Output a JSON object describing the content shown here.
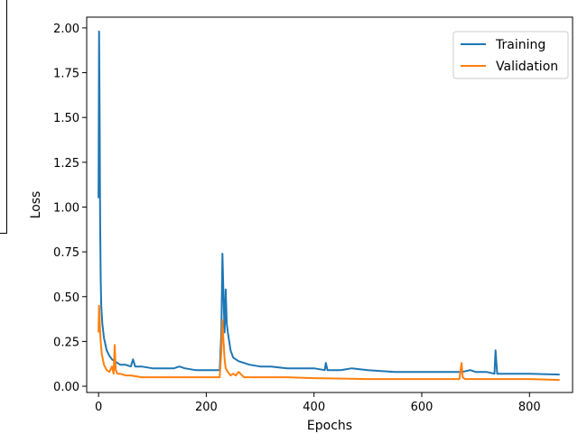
{
  "chart_data": {
    "type": "line",
    "title": "",
    "xlabel": "Epochs",
    "ylabel": "Loss",
    "xlim": [
      -22,
      880
    ],
    "ylim": [
      -0.035,
      2.06
    ],
    "xticks": [
      0,
      200,
      400,
      600,
      800
    ],
    "yticks": [
      0.0,
      0.25,
      0.5,
      0.75,
      1.0,
      1.25,
      1.5,
      1.75,
      2.0
    ],
    "xtick_labels": [
      "0",
      "200",
      "400",
      "600",
      "800"
    ],
    "ytick_labels": [
      "0.00",
      "0.25",
      "0.50",
      "0.75",
      "1.00",
      "1.25",
      "1.50",
      "1.75",
      "2.00"
    ],
    "grid": false,
    "legend_position": "top-right",
    "series": [
      {
        "name": "Training",
        "color": "#1f77b4",
        "x": [
          0,
          1,
          2,
          3,
          4,
          5,
          7,
          10,
          15,
          20,
          25,
          30,
          35,
          40,
          50,
          60,
          64,
          68,
          80,
          100,
          120,
          140,
          150,
          160,
          180,
          200,
          220,
          225,
          228,
          230,
          232,
          234,
          236,
          238,
          240,
          245,
          250,
          260,
          270,
          280,
          300,
          320,
          350,
          380,
          400,
          420,
          422,
          425,
          450,
          470,
          500,
          550,
          600,
          650,
          675,
          690,
          700,
          720,
          735,
          737,
          740,
          760,
          800,
          856
        ],
        "y": [
          1.05,
          1.98,
          1.55,
          0.9,
          0.6,
          0.45,
          0.35,
          0.27,
          0.2,
          0.17,
          0.15,
          0.14,
          0.13,
          0.12,
          0.12,
          0.11,
          0.15,
          0.11,
          0.11,
          0.1,
          0.1,
          0.1,
          0.11,
          0.1,
          0.09,
          0.09,
          0.09,
          0.09,
          0.3,
          0.74,
          0.5,
          0.3,
          0.54,
          0.35,
          0.3,
          0.2,
          0.16,
          0.14,
          0.13,
          0.12,
          0.11,
          0.11,
          0.1,
          0.1,
          0.1,
          0.09,
          0.13,
          0.09,
          0.09,
          0.1,
          0.09,
          0.08,
          0.08,
          0.08,
          0.08,
          0.09,
          0.08,
          0.08,
          0.07,
          0.2,
          0.07,
          0.07,
          0.07,
          0.065
        ]
      },
      {
        "name": "Validation",
        "color": "#ff7f0e",
        "x": [
          0,
          1,
          2,
          3,
          4,
          6,
          10,
          15,
          20,
          25,
          28,
          30,
          32,
          35,
          40,
          50,
          60,
          80,
          100,
          150,
          200,
          220,
          225,
          228,
          230,
          232,
          234,
          236,
          240,
          245,
          250,
          255,
          260,
          270,
          300,
          350,
          400,
          500,
          600,
          670,
          674,
          676,
          680,
          700,
          800,
          856
        ],
        "y": [
          0.3,
          0.45,
          0.38,
          0.3,
          0.25,
          0.18,
          0.12,
          0.09,
          0.08,
          0.11,
          0.07,
          0.23,
          0.09,
          0.07,
          0.07,
          0.06,
          0.06,
          0.05,
          0.05,
          0.05,
          0.05,
          0.05,
          0.05,
          0.2,
          0.37,
          0.25,
          0.15,
          0.1,
          0.08,
          0.06,
          0.07,
          0.06,
          0.08,
          0.05,
          0.05,
          0.05,
          0.045,
          0.04,
          0.04,
          0.04,
          0.13,
          0.05,
          0.04,
          0.04,
          0.04,
          0.035
        ]
      }
    ]
  }
}
